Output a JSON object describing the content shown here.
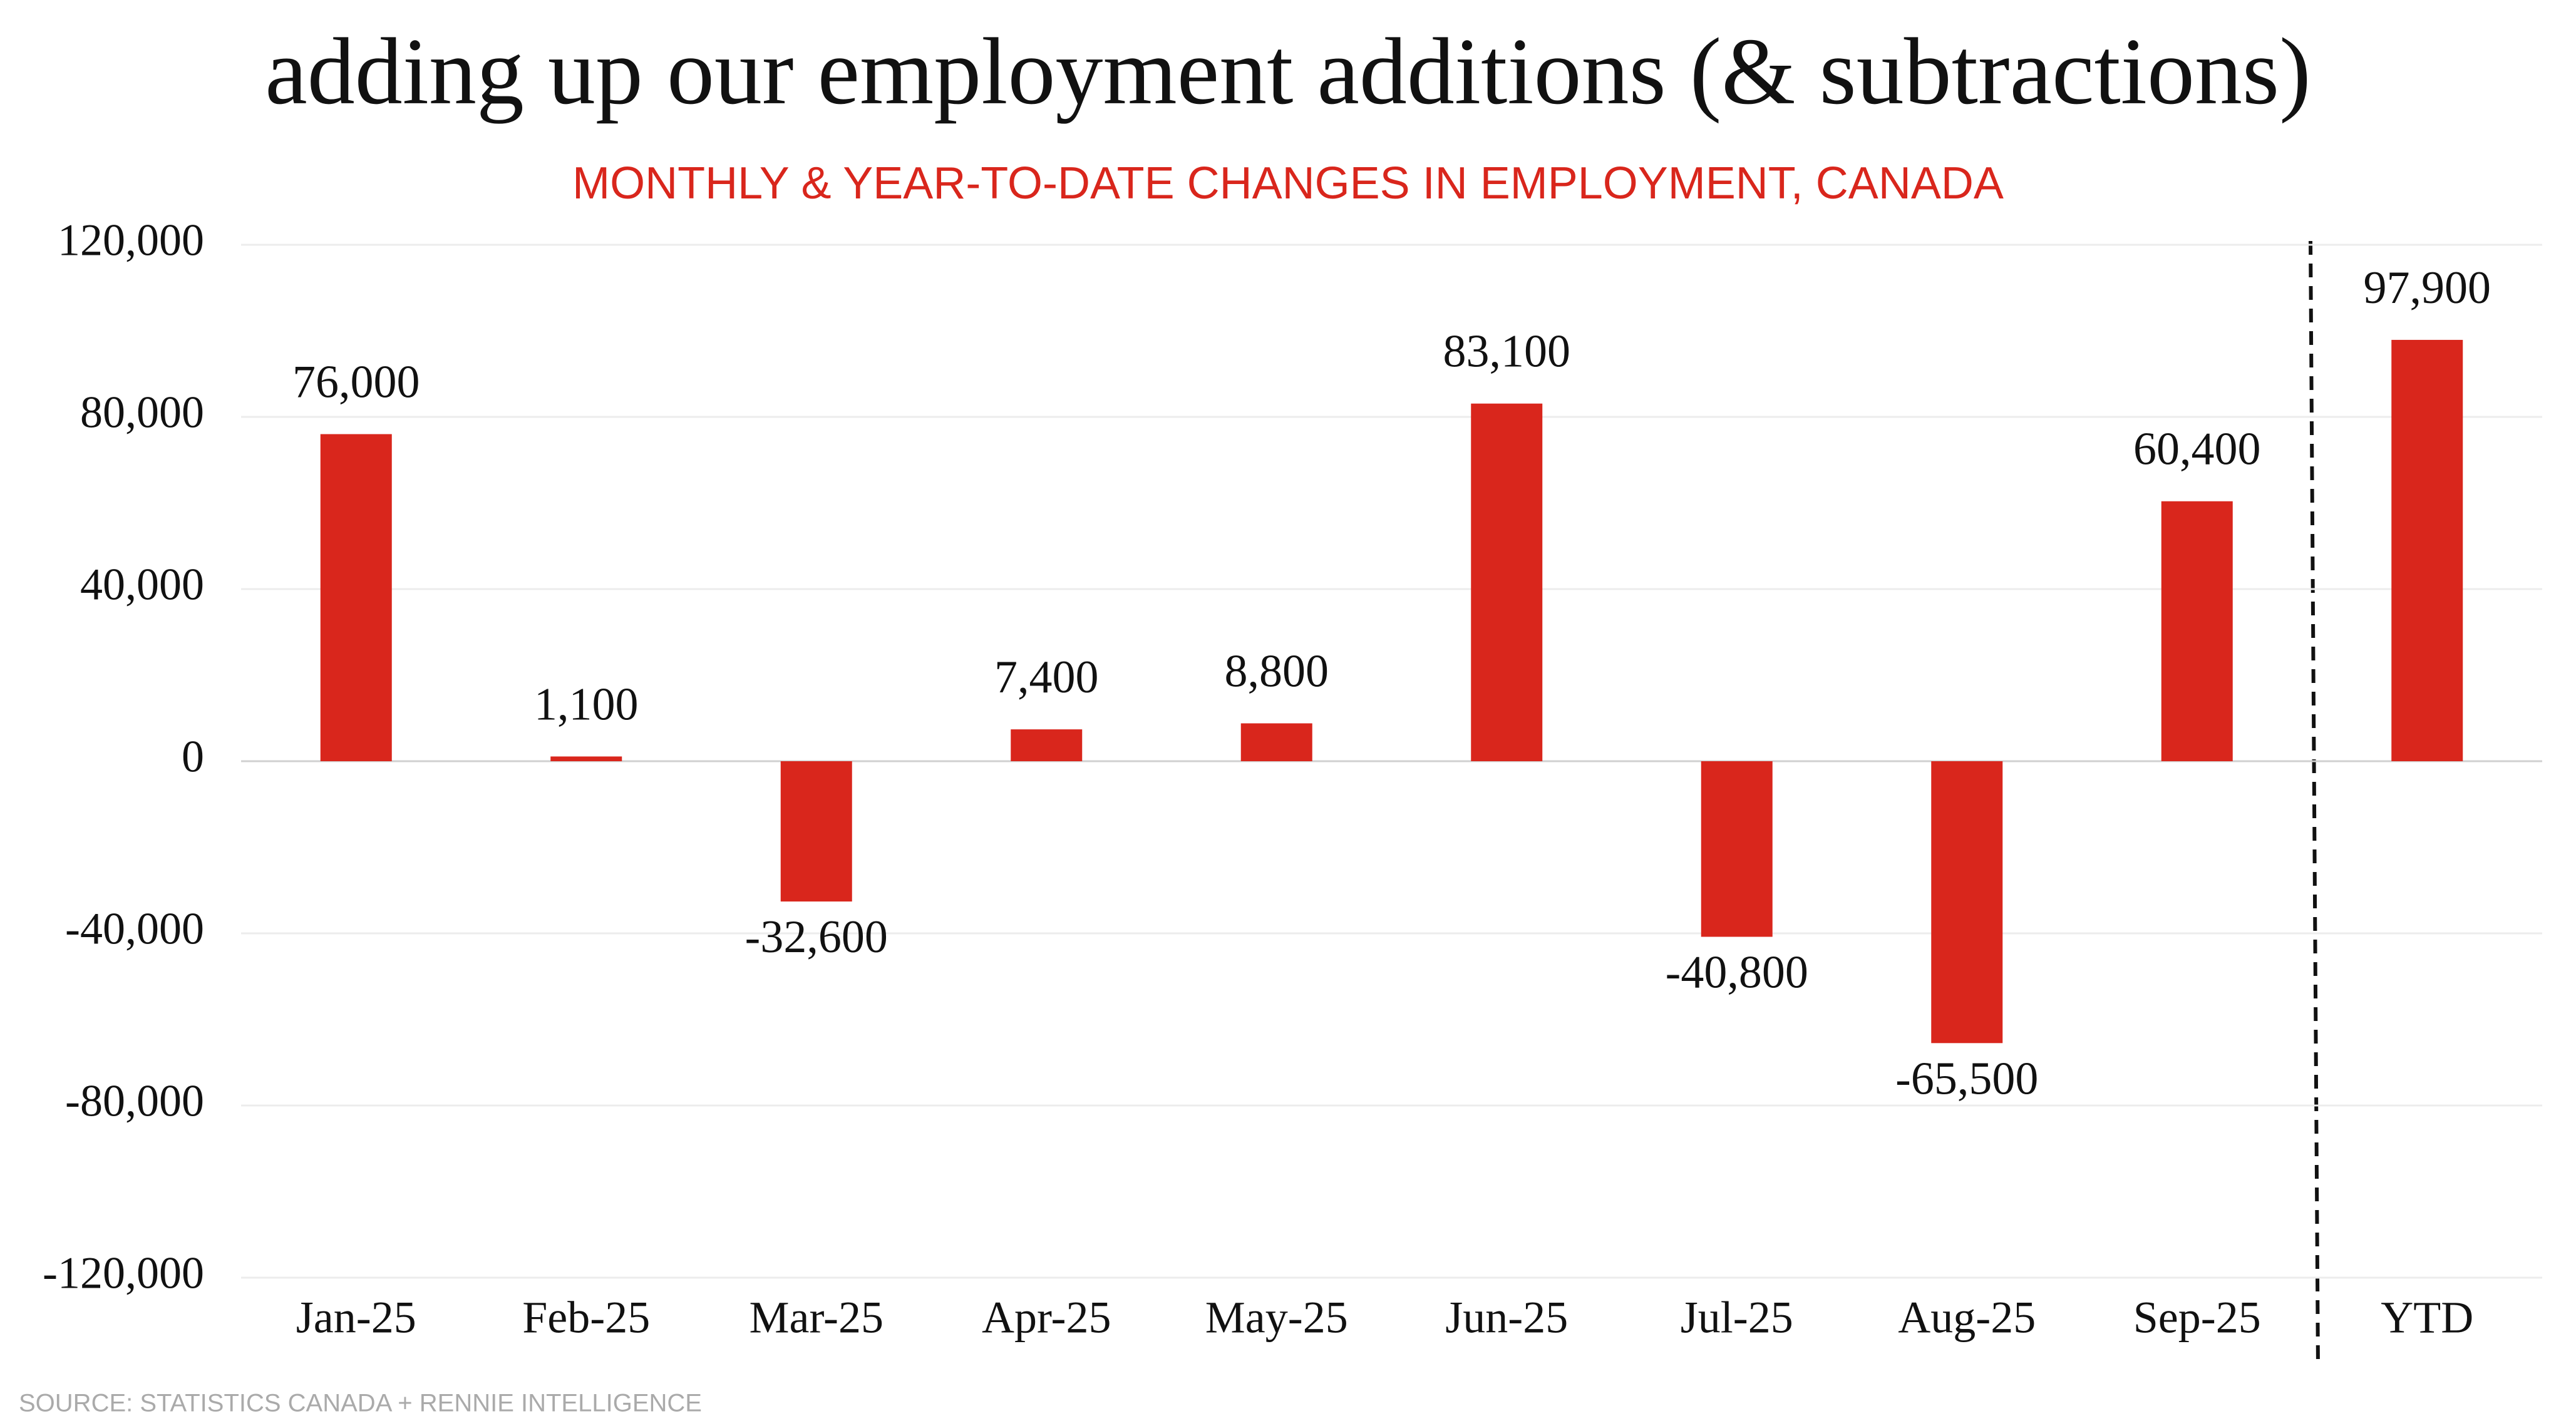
{
  "chart_data": {
    "type": "bar",
    "title": "adding up our employment additions (& subtractions)",
    "subtitle": "MONTHLY & YEAR-TO-DATE CHANGES IN EMPLOYMENT, CANADA",
    "source": "SOURCE: STATISTICS CANADA + RENNIE INTELLIGENCE",
    "categories": [
      "Jan-25",
      "Feb-25",
      "Mar-25",
      "Apr-25",
      "May-25",
      "Jun-25",
      "Jul-25",
      "Aug-25",
      "Sep-25",
      "YTD"
    ],
    "values": [
      76000,
      1100,
      -32600,
      7400,
      8800,
      83100,
      -40800,
      -65500,
      60400,
      97900
    ],
    "value_labels": [
      "76,000",
      "1,100",
      "-32,600",
      "7,400",
      "8,800",
      "83,100",
      "-40,800",
      "-65,500",
      "60,400",
      "97,900"
    ],
    "color": "#d9261c",
    "ylim": [
      -120000,
      120000
    ],
    "yticks": [
      {
        "value": -120000,
        "label": "-120,000"
      },
      {
        "value": -80000,
        "label": "-80,000"
      },
      {
        "value": -40000,
        "label": "-40,000"
      },
      0,
      {
        "value": 40000,
        "label": "40,000"
      },
      {
        "value": 80000,
        "label": "80,000"
      },
      {
        "value": 120000,
        "label": "120,000"
      }
    ],
    "grid": true
  }
}
